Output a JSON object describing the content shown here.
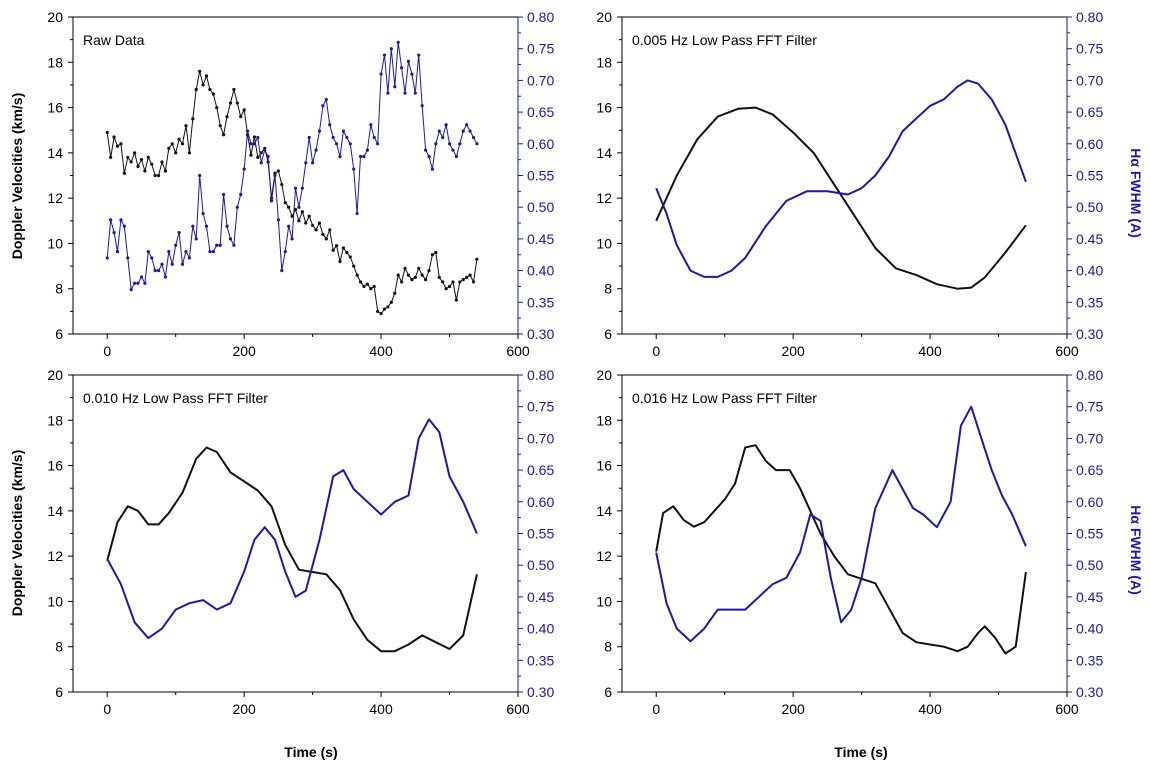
{
  "colors": {
    "black_series": "#111111",
    "blue_series": "#1a1aa6",
    "frame": "#000000"
  },
  "labels": {
    "ylabel_left": "Doppler Velocities (km/s)",
    "ylabel_right": "Hα FWHM (A)",
    "xlabel": "Time (s)"
  },
  "chart_data": [
    {
      "type": "line",
      "title": "Raw Data",
      "markers": true,
      "xlim": [
        -50,
        600
      ],
      "xticks": [
        0,
        200,
        400,
        600
      ],
      "ylim_left": [
        6,
        20
      ],
      "yticks_left": [
        6,
        8,
        10,
        12,
        14,
        16,
        18,
        20
      ],
      "ylim_right": [
        0.3,
        0.8
      ],
      "yticks_right": [
        "0.30",
        "0.35",
        "0.40",
        "0.45",
        "0.50",
        "0.55",
        "0.60",
        "0.65",
        "0.70",
        "0.75",
        "0.80"
      ],
      "series": [
        {
          "axis": "left",
          "x": [
            0,
            5,
            10,
            15,
            20,
            25,
            30,
            35,
            40,
            45,
            50,
            55,
            60,
            65,
            70,
            75,
            80,
            85,
            90,
            95,
            100,
            105,
            110,
            115,
            120,
            125,
            130,
            135,
            140,
            145,
            150,
            155,
            160,
            165,
            170,
            175,
            180,
            185,
            190,
            195,
            200,
            205,
            210,
            215,
            220,
            225,
            230,
            235,
            240,
            245,
            250,
            255,
            260,
            265,
            270,
            275,
            280,
            285,
            290,
            295,
            300,
            305,
            310,
            315,
            320,
            325,
            330,
            335,
            340,
            345,
            350,
            355,
            360,
            365,
            370,
            375,
            380,
            385,
            390,
            395,
            400,
            405,
            410,
            415,
            420,
            425,
            430,
            435,
            440,
            445,
            450,
            455,
            460,
            465,
            470,
            475,
            480,
            485,
            490,
            495,
            500,
            505,
            510,
            515,
            520,
            525,
            530,
            535,
            540
          ],
          "y": [
            14.9,
            13.8,
            14.7,
            14.3,
            14.4,
            13.1,
            13.8,
            13.6,
            14.0,
            13.4,
            13.7,
            13.2,
            13.8,
            13.5,
            13.0,
            13.0,
            13.6,
            13.2,
            14.2,
            14.4,
            14.0,
            14.6,
            14.4,
            15.2,
            14.0,
            15.5,
            16.8,
            17.6,
            17.0,
            17.4,
            16.8,
            16.6,
            16.0,
            15.2,
            14.8,
            15.6,
            16.2,
            16.8,
            16.2,
            15.6,
            15.9,
            14.8,
            13.9,
            14.7,
            13.8,
            14.0,
            14.2,
            13.6,
            12.0,
            13.1,
            13.2,
            12.6,
            11.8,
            11.6,
            11.2,
            11.5,
            11.0,
            11.4,
            10.9,
            11.2,
            10.8,
            10.6,
            10.9,
            10.4,
            10.2,
            10.6,
            9.7,
            9.9,
            9.2,
            9.8,
            9.6,
            9.4,
            9.0,
            8.6,
            8.3,
            8.1,
            8.2,
            8.0,
            8.1,
            7.0,
            6.9,
            7.1,
            7.2,
            7.4,
            7.8,
            8.6,
            8.3,
            8.9,
            8.6,
            8.4,
            8.5,
            8.9,
            8.6,
            8.4,
            8.8,
            9.5,
            9.6,
            8.5,
            8.3,
            8.0,
            8.1,
            8.3,
            7.5,
            8.3,
            8.4,
            8.5,
            8.6,
            8.3,
            9.3
          ]
        },
        {
          "axis": "right",
          "x": [
            0,
            5,
            10,
            15,
            20,
            25,
            30,
            35,
            40,
            45,
            50,
            55,
            60,
            65,
            70,
            75,
            80,
            85,
            90,
            95,
            100,
            105,
            110,
            115,
            120,
            125,
            130,
            135,
            140,
            145,
            150,
            155,
            160,
            165,
            170,
            175,
            180,
            185,
            190,
            195,
            200,
            205,
            210,
            215,
            220,
            225,
            230,
            235,
            240,
            245,
            250,
            255,
            260,
            265,
            270,
            275,
            280,
            285,
            290,
            295,
            300,
            305,
            310,
            315,
            320,
            325,
            330,
            335,
            340,
            345,
            350,
            355,
            360,
            365,
            370,
            375,
            380,
            385,
            390,
            395,
            400,
            405,
            410,
            415,
            420,
            425,
            430,
            435,
            440,
            445,
            450,
            455,
            460,
            465,
            470,
            475,
            480,
            485,
            490,
            495,
            500,
            505,
            510,
            515,
            520,
            525,
            530,
            535,
            540
          ],
          "y": [
            0.42,
            0.48,
            0.46,
            0.43,
            0.48,
            0.47,
            0.42,
            0.37,
            0.38,
            0.38,
            0.39,
            0.38,
            0.43,
            0.42,
            0.4,
            0.4,
            0.41,
            0.39,
            0.43,
            0.41,
            0.44,
            0.46,
            0.41,
            0.43,
            0.42,
            0.47,
            0.45,
            0.55,
            0.49,
            0.47,
            0.43,
            0.43,
            0.44,
            0.44,
            0.52,
            0.47,
            0.45,
            0.44,
            0.5,
            0.52,
            0.56,
            0.62,
            0.6,
            0.6,
            0.61,
            0.57,
            0.59,
            0.58,
            0.51,
            0.55,
            0.48,
            0.4,
            0.43,
            0.47,
            0.45,
            0.53,
            0.5,
            0.53,
            0.57,
            0.61,
            0.57,
            0.59,
            0.62,
            0.66,
            0.67,
            0.63,
            0.61,
            0.6,
            0.58,
            0.62,
            0.61,
            0.6,
            0.56,
            0.49,
            0.58,
            0.58,
            0.59,
            0.63,
            0.61,
            0.6,
            0.71,
            0.74,
            0.68,
            0.75,
            0.69,
            0.76,
            0.72,
            0.68,
            0.73,
            0.71,
            0.68,
            0.74,
            0.66,
            0.59,
            0.58,
            0.56,
            0.6,
            0.62,
            0.61,
            0.63,
            0.6,
            0.59,
            0.58,
            0.6,
            0.62,
            0.63,
            0.62,
            0.61,
            0.6
          ]
        }
      ]
    },
    {
      "type": "line",
      "title": "0.005 Hz Low Pass FFT Filter",
      "markers": false,
      "xlim": [
        -50,
        600
      ],
      "xticks": [
        0,
        200,
        400,
        600
      ],
      "ylim_left": [
        6,
        20
      ],
      "yticks_left": [
        6,
        8,
        10,
        12,
        14,
        16,
        18,
        20
      ],
      "ylim_right": [
        0.3,
        0.8
      ],
      "yticks_right": [
        "0.30",
        "0.35",
        "0.40",
        "0.45",
        "0.50",
        "0.55",
        "0.60",
        "0.65",
        "0.70",
        "0.75",
        "0.80"
      ],
      "series": [
        {
          "axis": "left",
          "x": [
            0,
            30,
            60,
            90,
            120,
            145,
            170,
            200,
            230,
            260,
            290,
            320,
            350,
            380,
            410,
            440,
            460,
            480,
            510,
            540
          ],
          "y": [
            11.0,
            13.0,
            14.6,
            15.6,
            15.95,
            16.0,
            15.7,
            14.9,
            14.0,
            12.6,
            11.2,
            9.8,
            8.9,
            8.6,
            8.2,
            8.0,
            8.05,
            8.5,
            9.6,
            10.8
          ]
        },
        {
          "axis": "right",
          "x": [
            0,
            15,
            30,
            50,
            70,
            90,
            110,
            130,
            160,
            190,
            220,
            250,
            280,
            300,
            320,
            340,
            360,
            380,
            400,
            420,
            440,
            455,
            470,
            490,
            510,
            540
          ],
          "y": [
            0.53,
            0.49,
            0.44,
            0.4,
            0.39,
            0.39,
            0.4,
            0.42,
            0.47,
            0.51,
            0.525,
            0.525,
            0.52,
            0.53,
            0.55,
            0.58,
            0.62,
            0.64,
            0.66,
            0.67,
            0.69,
            0.7,
            0.695,
            0.67,
            0.63,
            0.54
          ]
        }
      ]
    },
    {
      "type": "line",
      "title": "0.010 Hz Low Pass FFT Filter",
      "markers": false,
      "xlim": [
        -50,
        600
      ],
      "xticks": [
        0,
        200,
        400,
        600
      ],
      "ylim_left": [
        6,
        20
      ],
      "yticks_left": [
        6,
        8,
        10,
        12,
        14,
        16,
        18,
        20
      ],
      "ylim_right": [
        0.3,
        0.8
      ],
      "yticks_right": [
        "0.30",
        "0.35",
        "0.40",
        "0.45",
        "0.50",
        "0.55",
        "0.60",
        "0.65",
        "0.70",
        "0.75",
        "0.80"
      ],
      "series": [
        {
          "axis": "left",
          "x": [
            0,
            15,
            30,
            45,
            60,
            75,
            90,
            110,
            130,
            145,
            160,
            180,
            200,
            220,
            240,
            260,
            280,
            300,
            320,
            340,
            360,
            380,
            400,
            420,
            440,
            460,
            480,
            500,
            520,
            540
          ],
          "y": [
            11.8,
            13.5,
            14.2,
            14.0,
            13.4,
            13.4,
            13.9,
            14.8,
            16.3,
            16.8,
            16.6,
            15.7,
            15.3,
            14.9,
            14.2,
            12.5,
            11.4,
            11.3,
            11.2,
            10.5,
            9.2,
            8.3,
            7.8,
            7.8,
            8.1,
            8.5,
            8.2,
            7.9,
            8.5,
            11.2
          ]
        },
        {
          "axis": "right",
          "x": [
            0,
            20,
            40,
            60,
            80,
            100,
            120,
            140,
            160,
            180,
            200,
            215,
            230,
            245,
            260,
            275,
            290,
            310,
            330,
            345,
            360,
            380,
            400,
            420,
            440,
            455,
            470,
            485,
            500,
            520,
            540
          ],
          "y": [
            0.51,
            0.47,
            0.41,
            0.385,
            0.4,
            0.43,
            0.44,
            0.445,
            0.43,
            0.44,
            0.49,
            0.54,
            0.56,
            0.54,
            0.49,
            0.45,
            0.46,
            0.54,
            0.64,
            0.65,
            0.62,
            0.6,
            0.58,
            0.6,
            0.61,
            0.7,
            0.73,
            0.71,
            0.64,
            0.6,
            0.55
          ]
        }
      ]
    },
    {
      "type": "line",
      "title": "0.016 Hz Low Pass FFT Filter",
      "markers": false,
      "xlim": [
        -50,
        600
      ],
      "xticks": [
        0,
        200,
        400,
        600
      ],
      "ylim_left": [
        6,
        20
      ],
      "yticks_left": [
        6,
        8,
        10,
        12,
        14,
        16,
        18,
        20
      ],
      "ylim_right": [
        0.3,
        0.8
      ],
      "yticks_right": [
        "0.30",
        "0.35",
        "0.40",
        "0.45",
        "0.50",
        "0.55",
        "0.60",
        "0.65",
        "0.70",
        "0.75",
        "0.80"
      ],
      "series": [
        {
          "axis": "left",
          "x": [
            0,
            10,
            25,
            40,
            55,
            70,
            85,
            100,
            115,
            130,
            145,
            160,
            175,
            195,
            210,
            225,
            240,
            260,
            280,
            300,
            320,
            340,
            360,
            380,
            400,
            420,
            440,
            455,
            470,
            480,
            495,
            510,
            525,
            540
          ],
          "y": [
            12.2,
            13.9,
            14.2,
            13.6,
            13.3,
            13.5,
            14.0,
            14.5,
            15.2,
            16.8,
            16.9,
            16.2,
            15.8,
            15.8,
            15.0,
            14.0,
            13.0,
            12.0,
            11.2,
            11.0,
            10.8,
            9.7,
            8.6,
            8.2,
            8.1,
            8.0,
            7.8,
            8.0,
            8.6,
            8.9,
            8.4,
            7.7,
            8.0,
            11.3
          ]
        },
        {
          "axis": "right",
          "x": [
            0,
            15,
            30,
            50,
            70,
            90,
            110,
            130,
            150,
            170,
            190,
            210,
            225,
            240,
            255,
            270,
            285,
            300,
            320,
            345,
            360,
            375,
            390,
            410,
            430,
            445,
            460,
            475,
            490,
            505,
            520,
            540
          ],
          "y": [
            0.52,
            0.44,
            0.4,
            0.38,
            0.4,
            0.43,
            0.43,
            0.43,
            0.45,
            0.47,
            0.48,
            0.52,
            0.58,
            0.57,
            0.48,
            0.41,
            0.43,
            0.48,
            0.59,
            0.65,
            0.62,
            0.59,
            0.58,
            0.56,
            0.6,
            0.72,
            0.75,
            0.7,
            0.65,
            0.61,
            0.58,
            0.53
          ]
        }
      ]
    }
  ]
}
